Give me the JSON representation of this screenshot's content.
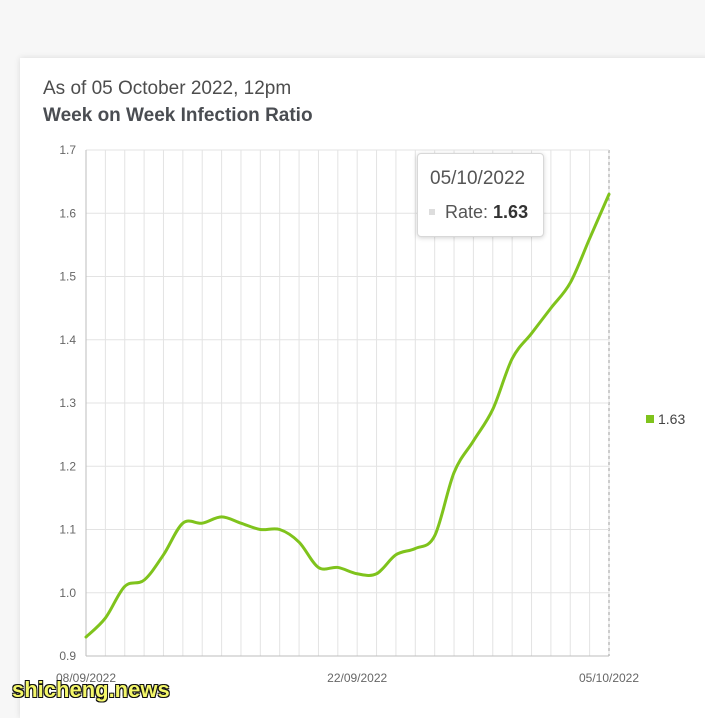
{
  "header": {
    "subtitle": "As of 05 October 2022, 12pm",
    "title": "Week on Week Infection Ratio"
  },
  "tooltip": {
    "date": "05/10/2022",
    "label": "Rate:",
    "value": "1.63"
  },
  "legend": {
    "label": "1.63",
    "color": "#7fc31c"
  },
  "watermark": "shicheng.news",
  "chart_data": {
    "type": "line",
    "title": "Week on Week Infection Ratio",
    "subtitle": "As of 05 October 2022, 12pm",
    "xlabel": "",
    "ylabel": "",
    "ylim": [
      0.9,
      1.7
    ],
    "yticks": [
      "0.9",
      "1.0",
      "1.1",
      "1.2",
      "1.3",
      "1.4",
      "1.5",
      "1.6",
      "1.7"
    ],
    "xtick_labels": [
      {
        "index": 0,
        "label": "08/09/2022"
      },
      {
        "index": 14,
        "label": "22/09/2022"
      },
      {
        "index": 27,
        "label": "05/10/2022"
      }
    ],
    "x": [
      "08/09/2022",
      "09/09/2022",
      "10/09/2022",
      "11/09/2022",
      "12/09/2022",
      "13/09/2022",
      "14/09/2022",
      "15/09/2022",
      "16/09/2022",
      "17/09/2022",
      "18/09/2022",
      "19/09/2022",
      "20/09/2022",
      "21/09/2022",
      "22/09/2022",
      "23/09/2022",
      "24/09/2022",
      "25/09/2022",
      "26/09/2022",
      "27/09/2022",
      "28/09/2022",
      "29/09/2022",
      "30/09/2022",
      "01/10/2022",
      "02/10/2022",
      "03/10/2022",
      "04/10/2022",
      "05/10/2022"
    ],
    "series": [
      {
        "name": "Rate",
        "color": "#7fc31c",
        "values": [
          0.93,
          0.96,
          1.01,
          1.02,
          1.06,
          1.11,
          1.11,
          1.12,
          1.11,
          1.1,
          1.1,
          1.08,
          1.04,
          1.04,
          1.03,
          1.03,
          1.06,
          1.07,
          1.09,
          1.19,
          1.24,
          1.29,
          1.37,
          1.41,
          1.45,
          1.49,
          1.56,
          1.63
        ]
      }
    ],
    "grid": true,
    "legend_position": "right"
  }
}
